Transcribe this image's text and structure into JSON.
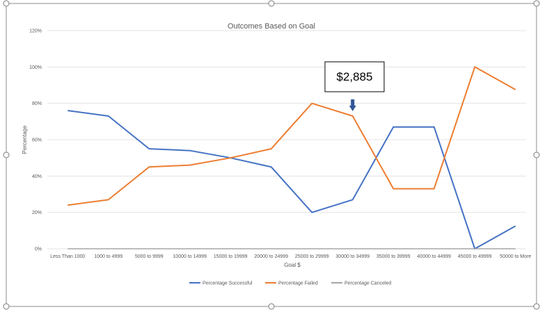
{
  "chart_data": {
    "type": "line",
    "title": "Outcomes Based on Goal",
    "xlabel": "Goal $",
    "ylabel": "Percentage",
    "categories": [
      "Less Than 1000",
      "1000 to 4999",
      "5000 to 9999",
      "10000 to 14999",
      "15000 to 19999",
      "20000 to 24999",
      "25000 to 29999",
      "30000 to 34999",
      "35000 to 39999",
      "40000 to 44999",
      "45000 to 49999",
      "50000 to More"
    ],
    "y_ticks": [
      "0%",
      "20%",
      "40%",
      "60%",
      "80%",
      "100%",
      "120%"
    ],
    "ylim": [
      0,
      120
    ],
    "grid": true,
    "legend_position": "bottom",
    "series": [
      {
        "name": "Percentage Successful",
        "color": "#4472C4",
        "values": [
          76,
          73,
          55,
          54,
          50,
          45,
          20,
          27,
          67,
          67,
          0,
          12.5
        ]
      },
      {
        "name": "Percentage Failed",
        "color": "#ED7D31",
        "values": [
          24,
          27,
          45,
          46,
          50,
          55,
          80,
          73,
          33,
          33,
          100,
          87.5
        ]
      },
      {
        "name": "Percentage Canceled",
        "color": "#A5A5A5",
        "values": [
          0,
          0,
          0,
          0,
          0,
          0,
          0,
          0,
          0,
          0,
          0,
          0
        ]
      }
    ],
    "annotation": {
      "text": "$2,885",
      "category": "30000 to 34999",
      "arrow_color": "#2F5597"
    }
  }
}
